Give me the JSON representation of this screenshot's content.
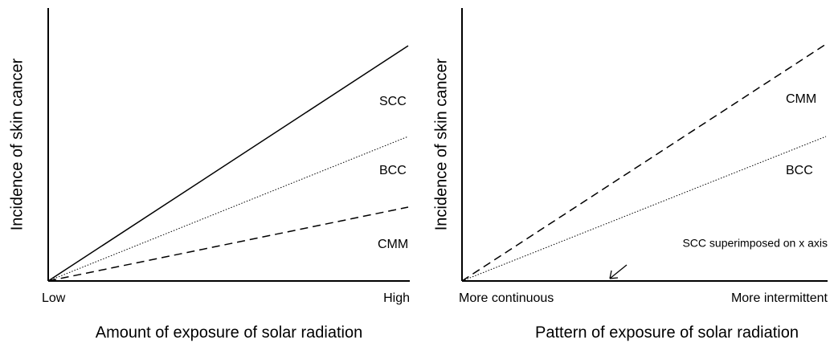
{
  "panels": [
    {
      "y_label": "Incidence of skin cancer",
      "x_label": "Amount of exposure of solar radiation",
      "x_start": "Low",
      "x_end": "High",
      "line_labels": [
        "SCC",
        "BCC",
        "CMM"
      ]
    },
    {
      "y_label": "Incidence of skin cancer",
      "x_label": "Pattern of exposure of solar radiation",
      "x_start": "More continuous",
      "x_end": "More intermittent",
      "line_labels": [
        "CMM",
        "BCC"
      ],
      "annotation": "SCC superimposed on x axis"
    }
  ]
}
